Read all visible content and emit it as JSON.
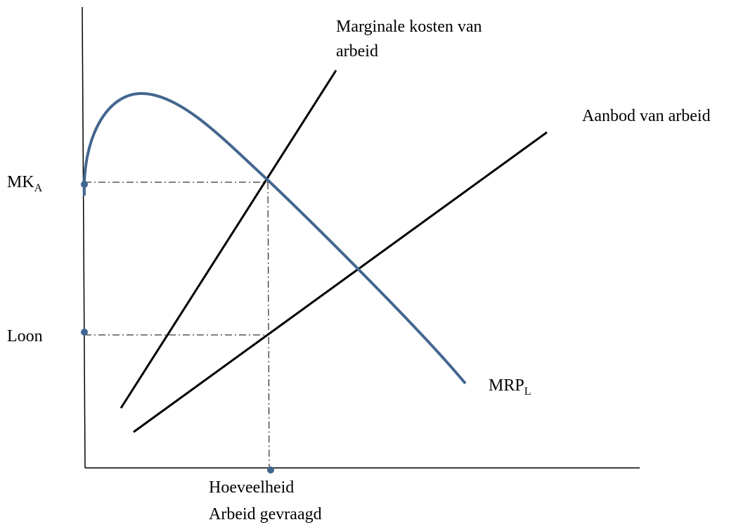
{
  "labels": {
    "mk_curve": [
      "Marginale kosten van",
      "arbeid"
    ],
    "supply": "Aanbod van arbeid",
    "y_mk": {
      "text": "MK",
      "sub": "A"
    },
    "y_wage": "Loon",
    "mrp": {
      "text": "MRP",
      "sub": "L"
    },
    "x_quantity": [
      "Hoeveelheid",
      "Arbeid gevraagd"
    ]
  }
}
